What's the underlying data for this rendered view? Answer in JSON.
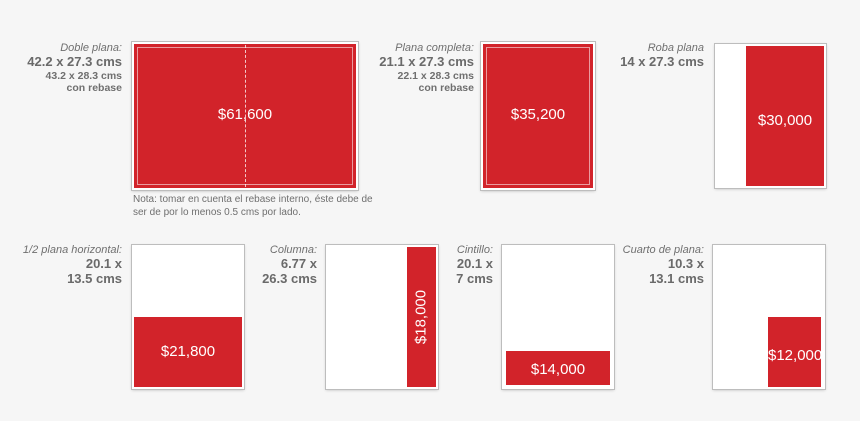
{
  "ads": [
    {
      "name": "Doble plana:",
      "sizes": [
        "42.2 x 27.3 cms"
      ],
      "extra": [
        "43.2 x 28.3 cms",
        "con rebase"
      ],
      "price": "$61,600"
    },
    {
      "name": "Plana completa:",
      "sizes": [
        "21.1 x 27.3 cms"
      ],
      "extra": [
        "22.1 x 28.3 cms",
        "con rebase"
      ],
      "price": "$35,200"
    },
    {
      "name": "Roba plana",
      "sizes": [
        "14 x 27.3 cms"
      ],
      "extra": [],
      "price": "$30,000"
    },
    {
      "name": "1/2 plana horizontal:",
      "sizes": [
        "20.1 x",
        "13.5 cms"
      ],
      "extra": [],
      "price": "$21,800"
    },
    {
      "name": "Columna:",
      "sizes": [
        "6.77 x",
        "26.3 cms"
      ],
      "extra": [],
      "price": "$18,000"
    },
    {
      "name": "Cintillo:",
      "sizes": [
        "20.1 x",
        "7 cms"
      ],
      "extra": [],
      "price": "$14,000"
    },
    {
      "name": "Cuarto de plana:",
      "sizes": [
        "10.3 x",
        "13.1 cms"
      ],
      "extra": [],
      "price": "$12,000"
    }
  ],
  "note": {
    "line1": "Nota: tomar en cuenta el rebase interno, éste debe de",
    "line2": "ser de por lo menos 0.5 cms por lado."
  },
  "colors": {
    "accent": "#d2232a",
    "background": "#f6f6f6"
  }
}
